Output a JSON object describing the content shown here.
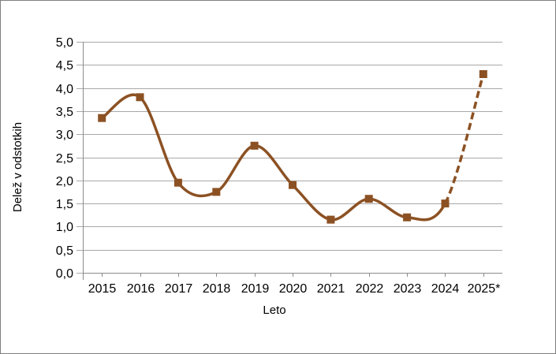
{
  "window": {
    "background_color": "#ffffff",
    "border_color": "#7f7f7f"
  },
  "chart_data": {
    "type": "line",
    "title": "",
    "xlabel": "Leto",
    "ylabel": "Delež v odstotkih",
    "categories": [
      "2015",
      "2016",
      "2017",
      "2018",
      "2019",
      "2020",
      "2021",
      "2022",
      "2023",
      "2024",
      "2025*"
    ],
    "series": [
      {
        "name": "Delež v odstotkih",
        "values": [
          3.35,
          3.8,
          1.95,
          1.75,
          2.75,
          1.9,
          1.15,
          1.6,
          1.2,
          1.5,
          4.3
        ],
        "color": "#8C5123",
        "marker": "square",
        "smooth": true,
        "dashed_from_index": 9
      }
    ],
    "ylim": [
      0,
      5
    ],
    "ytick_step": 0.5,
    "y_tick_labels": [
      "0,0",
      "0,5",
      "1,0",
      "1,5",
      "2,0",
      "2,5",
      "3,0",
      "3,5",
      "4,0",
      "4,5",
      "5,0"
    ],
    "grid": "horizontal",
    "gridline_color": "#A8A8A8",
    "axis_color": "#8C8C8C",
    "text_color": "#000000",
    "legend_position": "none"
  }
}
